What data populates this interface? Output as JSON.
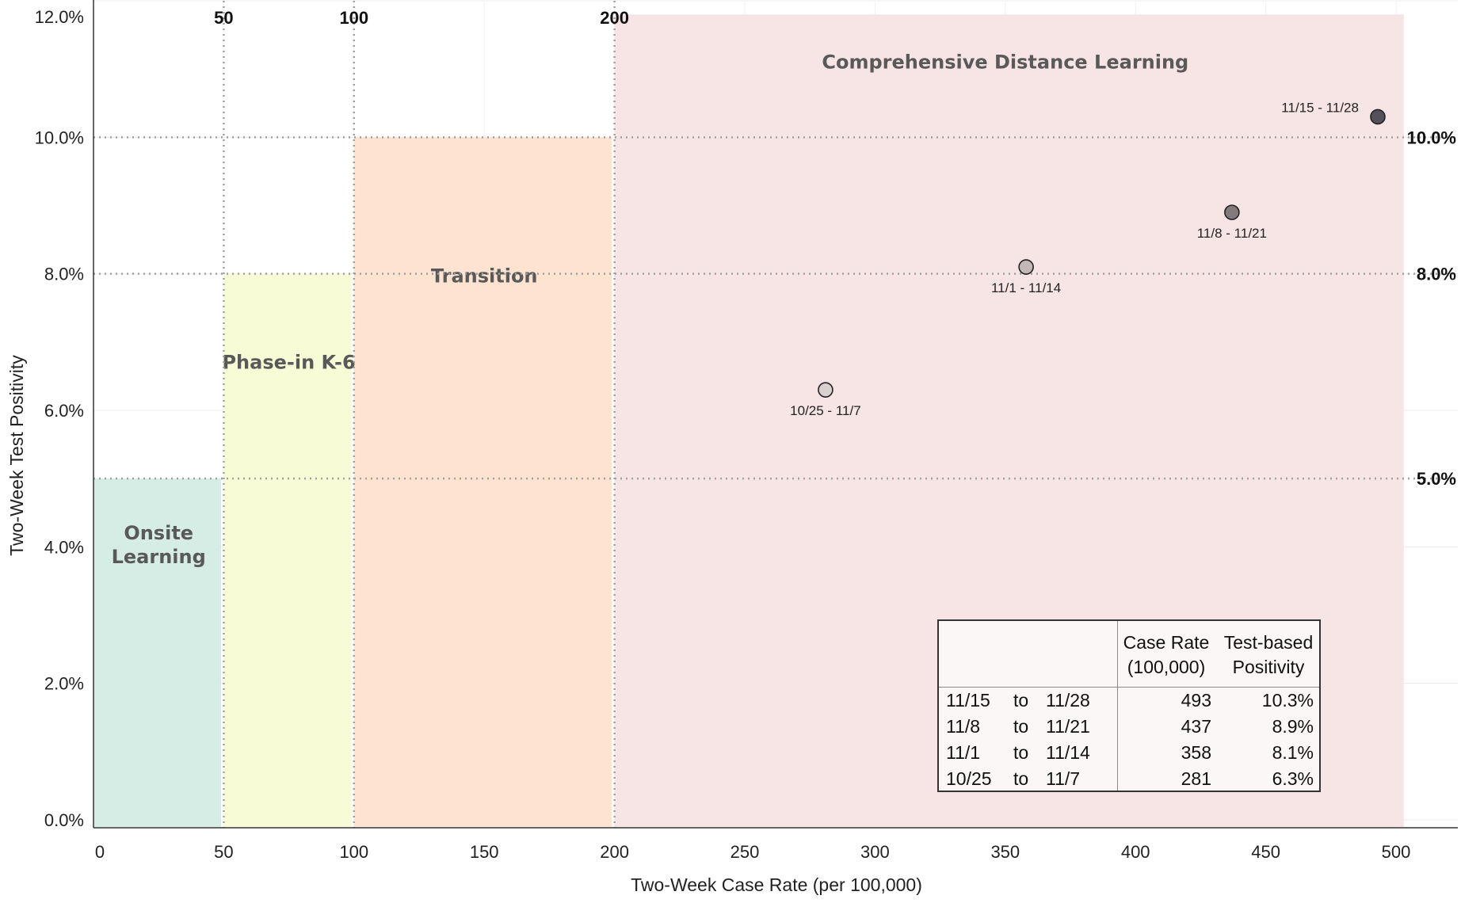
{
  "chart_data": {
    "type": "scatter",
    "xlabel": "Two-Week Case Rate (per 100,000)",
    "ylabel": "Two-Week Test Positivity",
    "xlim": [
      0,
      510
    ],
    "ylim": [
      0,
      12
    ],
    "x_ticks": [
      "0",
      "50",
      "100",
      "150",
      "200",
      "250",
      "300",
      "350",
      "400",
      "450",
      "500"
    ],
    "y_ticks": [
      "0.0%",
      "2.0%",
      "4.0%",
      "6.0%",
      "8.0%",
      "10.0%",
      "12.0%"
    ],
    "grid": true,
    "zones": [
      {
        "label_lines": [
          "Onsite",
          "Learning"
        ],
        "x_range": [
          0,
          49
        ],
        "y_max": 5,
        "color": "#d5ede5"
      },
      {
        "label_lines": [
          "Phase-in K-6"
        ],
        "x_range": [
          50,
          99
        ],
        "y_max": 8,
        "color": "#f7fcd6"
      },
      {
        "label_lines": [
          "Transition"
        ],
        "x_range": [
          100,
          199
        ],
        "y_max": 10,
        "color": "#fde3d0"
      },
      {
        "label_lines": [
          "Comprehensive Distance Learning"
        ],
        "x_range": [
          200,
          503
        ],
        "y_max": 11.8,
        "color": "#f7e5e5"
      }
    ],
    "vertical_refs": [
      {
        "x": 50,
        "label": "50"
      },
      {
        "x": 100,
        "label": "100"
      },
      {
        "x": 200,
        "label": "200"
      }
    ],
    "horizontal_refs": [
      {
        "y": 10,
        "label": "10.0%"
      },
      {
        "y": 8,
        "label": "8.0%"
      },
      {
        "y": 5,
        "label": "5.0%"
      }
    ],
    "series": [
      {
        "points": [
          {
            "label": "10/25 - 11/7",
            "x": 281,
            "y": 6.3,
            "color": "#d9d0d0"
          },
          {
            "label": "11/1 - 11/14",
            "x": 358,
            "y": 8.1,
            "color": "#c4b7b8"
          },
          {
            "label": "11/8 - 11/21",
            "x": 437,
            "y": 8.9,
            "color": "#837a7e"
          },
          {
            "label": "11/15 - 11/28",
            "x": 493,
            "y": 10.3,
            "color": "#55505a"
          }
        ]
      }
    ]
  },
  "table": {
    "headers": {
      "case_rate_line1": "Case Rate",
      "case_rate_line2": "(100,000)",
      "positivity_line1": "Test-based",
      "positivity_line2": "Positivity"
    },
    "rows": [
      {
        "start": "11/15",
        "sep": "to",
        "end": "11/28",
        "rate": "493",
        "positivity": "10.3%"
      },
      {
        "start": "11/8",
        "sep": "to",
        "end": "11/21",
        "rate": "437",
        "positivity": "8.9%"
      },
      {
        "start": "11/1",
        "sep": "to",
        "end": "11/14",
        "rate": "358",
        "positivity": "8.1%"
      },
      {
        "start": "10/25",
        "sep": "to",
        "end": "11/7",
        "rate": "281",
        "positivity": "6.3%"
      }
    ]
  }
}
